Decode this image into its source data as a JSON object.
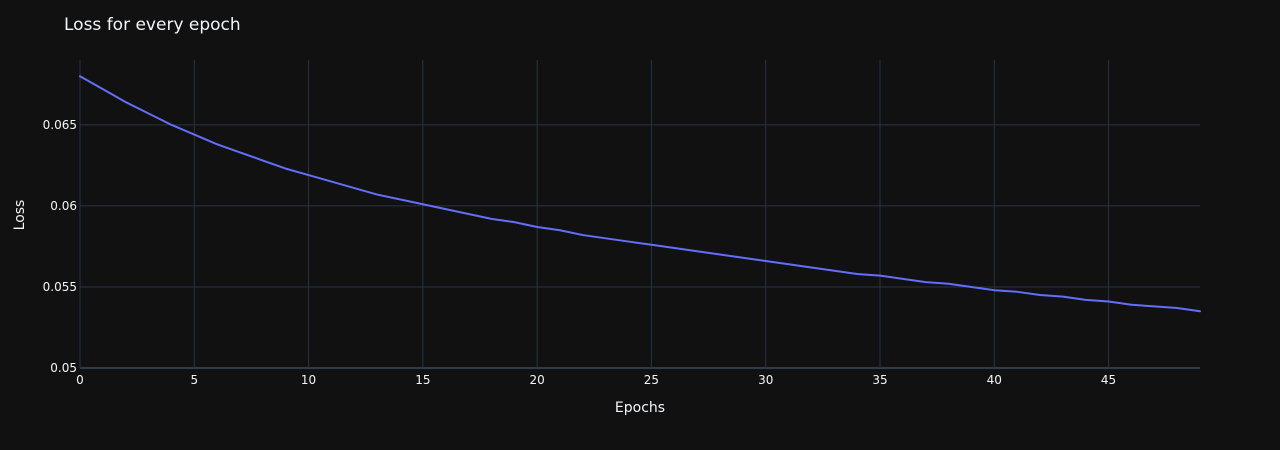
{
  "chart_data": {
    "type": "line",
    "title": "Loss for every epoch",
    "xlabel": "Epochs",
    "ylabel": "Loss",
    "xlim": [
      0,
      49
    ],
    "ylim": [
      0.05,
      0.069
    ],
    "x_ticks": [
      0,
      5,
      10,
      15,
      20,
      25,
      30,
      35,
      40,
      45
    ],
    "x_tick_labels": [
      "0",
      "5",
      "10",
      "15",
      "20",
      "25",
      "30",
      "35",
      "40",
      "45"
    ],
    "y_ticks": [
      0.05,
      0.055,
      0.06,
      0.065
    ],
    "y_tick_labels": [
      "0.05",
      "0.055",
      "0.06",
      "0.065"
    ],
    "grid": true,
    "legend": "none",
    "colors": {
      "background": "#111111",
      "line": "#636efa",
      "grid": "#283442",
      "text": "#f2f5fa"
    },
    "series": [
      {
        "x": [
          0,
          1,
          2,
          3,
          4,
          5,
          6,
          7,
          8,
          9,
          10,
          11,
          12,
          13,
          14,
          15,
          16,
          17,
          18,
          19,
          20,
          21,
          22,
          23,
          24,
          25,
          26,
          27,
          28,
          29,
          30,
          31,
          32,
          33,
          34,
          35,
          36,
          37,
          38,
          39,
          40,
          41,
          42,
          43,
          44,
          45,
          46,
          47,
          48,
          49
        ],
        "values": [
          0.068,
          0.0672,
          0.0664,
          0.0657,
          0.065,
          0.0644,
          0.0638,
          0.0633,
          0.0628,
          0.0623,
          0.0619,
          0.0615,
          0.0611,
          0.0607,
          0.0604,
          0.0601,
          0.0598,
          0.0595,
          0.0592,
          0.059,
          0.0587,
          0.0585,
          0.0582,
          0.058,
          0.0578,
          0.0576,
          0.0574,
          0.0572,
          0.057,
          0.0568,
          0.0566,
          0.0564,
          0.0562,
          0.056,
          0.0558,
          0.0557,
          0.0555,
          0.0553,
          0.0552,
          0.055,
          0.0548,
          0.0547,
          0.0545,
          0.0544,
          0.0542,
          0.0541,
          0.0539,
          0.0538,
          0.0537,
          0.0535
        ]
      }
    ]
  }
}
